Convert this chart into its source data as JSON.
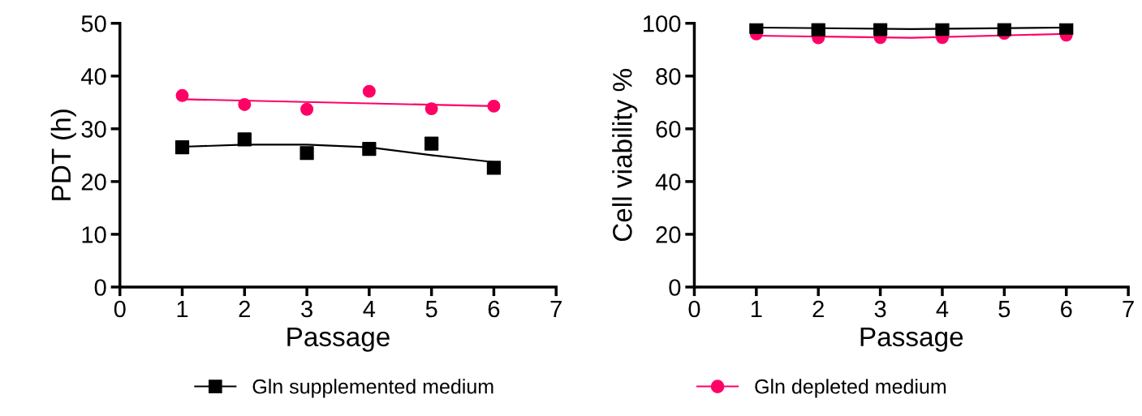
{
  "chart_data": [
    {
      "type": "scatter",
      "xlabel": "Passage",
      "ylabel": "PDT (h)",
      "xlim": [
        0,
        7
      ],
      "xticks": [
        0,
        1,
        2,
        3,
        4,
        5,
        6,
        7
      ],
      "ylim": [
        0,
        50
      ],
      "yticks": [
        0,
        10,
        20,
        30,
        40,
        50
      ],
      "x": [
        1,
        2,
        3,
        4,
        5,
        6
      ],
      "legend": "bottom",
      "grid": false,
      "series": [
        {
          "name": "Gln supplemented medium",
          "color": "#000000",
          "marker": "square",
          "values": [
            26.5,
            28.0,
            25.4,
            26.2,
            27.2,
            22.6
          ]
        },
        {
          "name": "Gln depleted medium",
          "color": "#ff0066",
          "marker": "circle",
          "values": [
            36.3,
            34.6,
            33.7,
            37.1,
            33.8,
            34.3
          ]
        },
        {
          "type": "line",
          "color": "#000000",
          "x": [
            1,
            2,
            3,
            4,
            5,
            6
          ],
          "values": [
            26.6,
            27.0,
            27.0,
            26.5,
            25.0,
            23.7
          ]
        },
        {
          "type": "line",
          "color": "#ff0066",
          "x": [
            1,
            6
          ],
          "values": [
            35.6,
            34.3
          ]
        }
      ]
    },
    {
      "type": "scatter",
      "xlabel": "Passage",
      "ylabel": "Cell viability %",
      "xlim": [
        0,
        7
      ],
      "xticks": [
        0,
        1,
        2,
        3,
        4,
        5,
        6,
        7
      ],
      "ylim": [
        0,
        100
      ],
      "yticks": [
        0,
        20,
        40,
        60,
        80,
        100
      ],
      "x": [
        1,
        2,
        3,
        4,
        5,
        6
      ],
      "grid": false,
      "series": [
        {
          "type": "line",
          "color": "#000000",
          "x": [
            1,
            3.5,
            6
          ],
          "values": [
            98.4,
            97.8,
            98.4
          ]
        },
        {
          "type": "line",
          "color": "#ff0066",
          "x": [
            1,
            3.5,
            6
          ],
          "values": [
            95.3,
            94.5,
            96.0
          ]
        },
        {
          "color": "#ff0066",
          "marker": "circle",
          "values": [
            96.0,
            94.5,
            94.6,
            94.6,
            96.2,
            95.5
          ]
        },
        {
          "color": "#000000",
          "marker": "square",
          "values": [
            98.6,
            97.7,
            97.8,
            97.9,
            97.8,
            98.3
          ]
        }
      ]
    }
  ]
}
